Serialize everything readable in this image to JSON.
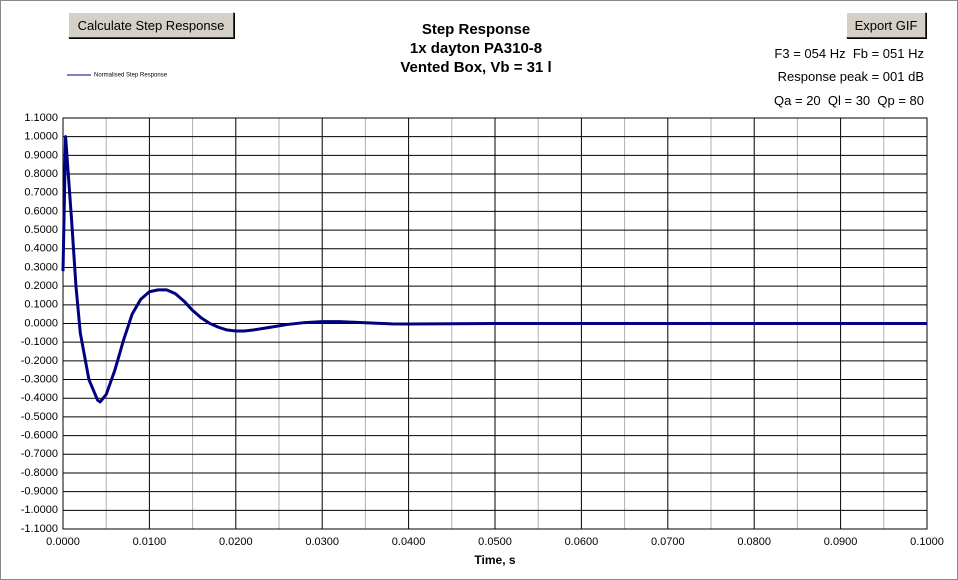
{
  "buttons": [
    "Calculate Step Response",
    "Export GIF"
  ],
  "info": [
    "F3 = 054 Hz  Fb = 051 Hz",
    "Response peak = 001 dB",
    "Qa = 20  Ql = 30  Qp = 80"
  ],
  "chart_data": {
    "type": "line",
    "title": "Step Response",
    "subtitle": [
      "1x dayton PA310-8",
      "Vented Box, Vb = 31 l"
    ],
    "x_label": "Time, s",
    "x": [
      0,
      0.0003,
      0.001,
      0.0015,
      0.002,
      0.003,
      0.004,
      0.0043,
      0.005,
      0.006,
      0.007,
      0.008,
      0.009,
      0.01,
      0.011,
      0.012,
      0.013,
      0.014,
      0.015,
      0.016,
      0.017,
      0.018,
      0.019,
      0.02,
      0.021,
      0.022,
      0.024,
      0.026,
      0.028,
      0.03,
      0.032,
      0.034,
      0.036,
      0.038,
      0.04,
      0.045,
      0.05,
      0.06,
      0.07,
      0.08,
      0.09,
      0.1
    ],
    "series": [
      {
        "name": "Normalised Step Response",
        "color": "#000080",
        "values": [
          0.28,
          1.0,
          0.55,
          0.2,
          -0.05,
          -0.3,
          -0.41,
          -0.42,
          -0.38,
          -0.25,
          -0.09,
          0.05,
          0.13,
          0.17,
          0.18,
          0.18,
          0.16,
          0.12,
          0.07,
          0.03,
          0.0,
          -0.02,
          -0.035,
          -0.04,
          -0.04,
          -0.035,
          -0.02,
          -0.005,
          0.005,
          0.01,
          0.01,
          0.006,
          0.002,
          -0.002,
          -0.003,
          -0.001,
          0,
          0,
          0,
          0,
          0,
          0
        ]
      }
    ],
    "xlim": [
      0,
      0.1
    ],
    "xticks": [
      {
        "value": 0,
        "label": "0.0000"
      },
      {
        "value": 0.01,
        "label": "0.0100"
      },
      {
        "value": 0.02,
        "label": "0.0200"
      },
      {
        "value": 0.03,
        "label": "0.0300"
      },
      {
        "value": 0.04,
        "label": "0.0400"
      },
      {
        "value": 0.05,
        "label": "0.0500"
      },
      {
        "value": 0.06,
        "label": "0.0600"
      },
      {
        "value": 0.07,
        "label": "0.0700"
      },
      {
        "value": 0.08,
        "label": "0.0800"
      },
      {
        "value": 0.09,
        "label": "0.0900"
      },
      {
        "value": 0.1,
        "label": "0.1000"
      }
    ],
    "x_minor_ticks": [
      0.005,
      0.015,
      0.025,
      0.035,
      0.045,
      0.055,
      0.065,
      0.075,
      0.085,
      0.095
    ],
    "ylim": [
      -1.1,
      1.1
    ],
    "yticks": [
      {
        "value": 1.1,
        "label": "1.1000"
      },
      {
        "value": 1.0,
        "label": "1.0000"
      },
      {
        "value": 0.9,
        "label": "0.9000"
      },
      {
        "value": 0.8,
        "label": "0.8000"
      },
      {
        "value": 0.7,
        "label": "0.7000"
      },
      {
        "value": 0.6,
        "label": "0.6000"
      },
      {
        "value": 0.5,
        "label": "0.5000"
      },
      {
        "value": 0.4,
        "label": "0.4000"
      },
      {
        "value": 0.3,
        "label": "0.3000"
      },
      {
        "value": 0.2,
        "label": "0.2000"
      },
      {
        "value": 0.1,
        "label": "0.1000"
      },
      {
        "value": 0,
        "label": "0.0000"
      },
      {
        "value": -0.1,
        "label": "-0.1000"
      },
      {
        "value": -0.2,
        "label": "-0.2000"
      },
      {
        "value": -0.3,
        "label": "-0.3000"
      },
      {
        "value": -0.4,
        "label": "-0.4000"
      },
      {
        "value": -0.5,
        "label": "-0.5000"
      },
      {
        "value": -0.6,
        "label": "-0.6000"
      },
      {
        "value": -0.7,
        "label": "-0.7000"
      },
      {
        "value": -0.8,
        "label": "-0.8000"
      },
      {
        "value": -0.9,
        "label": "-0.9000"
      },
      {
        "value": -1.0,
        "label": "-1.0000"
      },
      {
        "value": -1.1,
        "label": "-1.1000"
      }
    ],
    "grid": true
  }
}
